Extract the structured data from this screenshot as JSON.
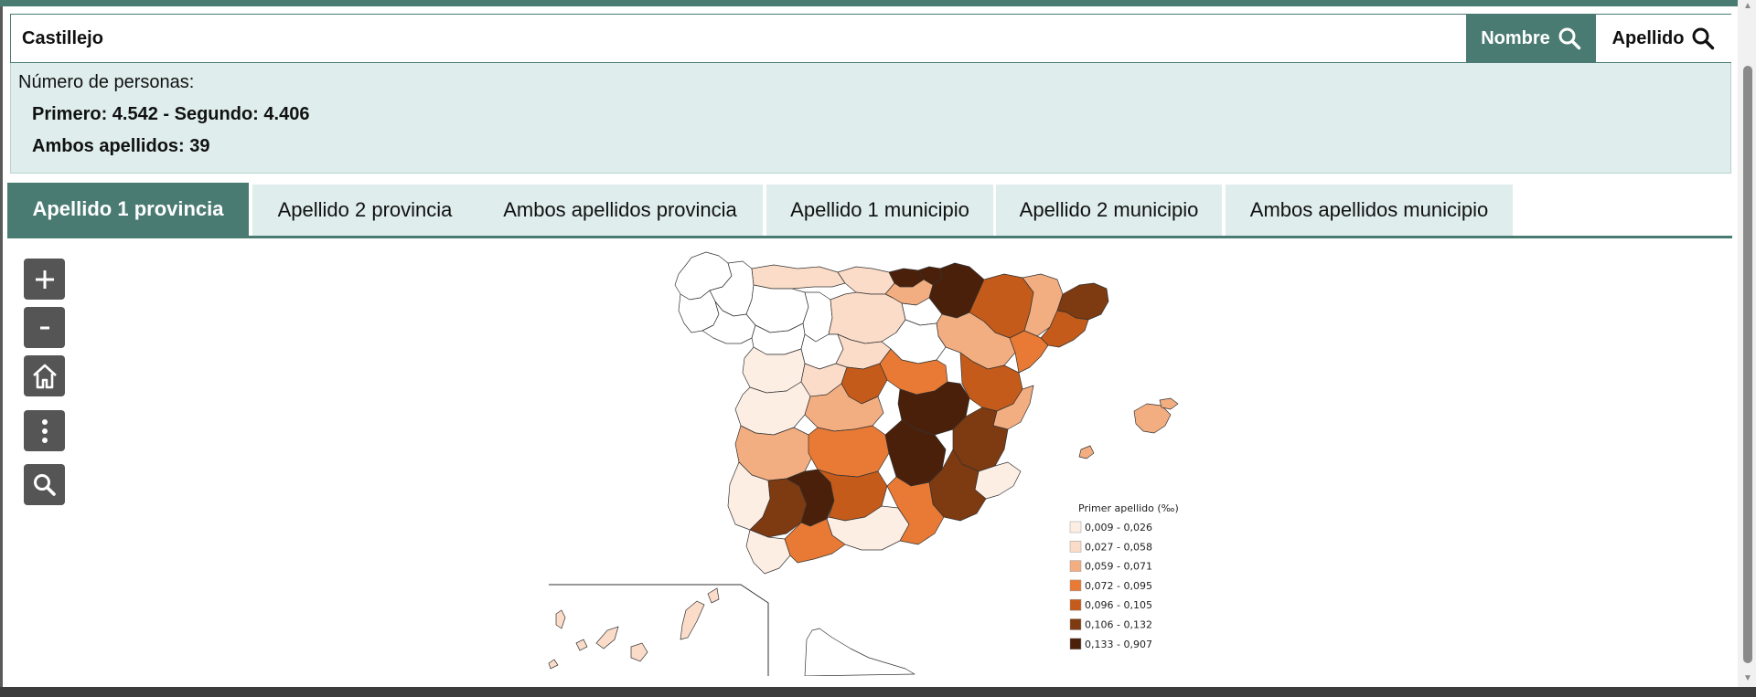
{
  "search": {
    "value": "Castillejo",
    "nombre_label": "Nombre",
    "apellido_label": "Apellido"
  },
  "info": {
    "label": "Número de personas:",
    "line1": "Primero: 4.542 - Segundo: 4.406",
    "line2": "Ambos apellidos: 39"
  },
  "tabs": [
    {
      "label": "Apellido 1 provincia",
      "active": true
    },
    {
      "label": "Apellido 2 provincia",
      "active": false
    },
    {
      "label": "Ambos apellidos provincia",
      "active": false
    },
    {
      "label": "Apellido 1 municipio",
      "active": false
    },
    {
      "label": "Apellido 2 municipio",
      "active": false
    },
    {
      "label": "Ambos apellidos municipio",
      "active": false
    }
  ],
  "map_controls": [
    {
      "name": "zoom-in",
      "icon": "plus-icon"
    },
    {
      "name": "zoom-out",
      "icon": "minus-icon"
    },
    {
      "name": "home",
      "icon": "home-icon"
    },
    {
      "name": "more-options",
      "icon": "more-vertical-icon"
    },
    {
      "name": "search",
      "icon": "search-icon"
    }
  ],
  "legend": {
    "title": "Primer apellido (‰)",
    "classes": [
      {
        "label": "0,009 - 0,026",
        "color": "#fdeee4"
      },
      {
        "label": "0,027 - 0,058",
        "color": "#fbdcc8"
      },
      {
        "label": "0,059 - 0,071",
        "color": "#f2ad80"
      },
      {
        "label": "0,072 - 0,095",
        "color": "#e87a35"
      },
      {
        "label": "0,096 - 0,105",
        "color": "#c55b1a"
      },
      {
        "label": "0,106 - 0,132",
        "color": "#7e3a10"
      },
      {
        "label": "0,133 - 0,907",
        "color": "#4a200a"
      }
    ],
    "no_data_color": "#ffffff"
  },
  "colors": {
    "accent": "#4a7b72",
    "info_bg": "#dfeeec",
    "control_bg": "#555555"
  }
}
